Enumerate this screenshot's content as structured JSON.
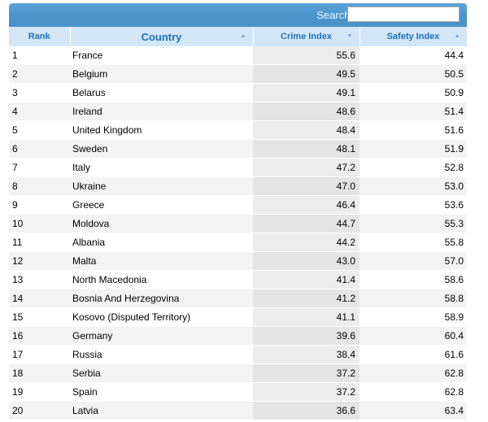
{
  "search": {
    "label": "Search:",
    "value": ""
  },
  "columns": {
    "rank": "Rank",
    "country": "Country",
    "crime": "Crime Index",
    "safety": "Safety Index"
  },
  "rows": [
    {
      "rank": "1",
      "country": "France",
      "crime": "55.6",
      "safety": "44.4"
    },
    {
      "rank": "2",
      "country": "Belgium",
      "crime": "49.5",
      "safety": "50.5"
    },
    {
      "rank": "3",
      "country": "Belarus",
      "crime": "49.1",
      "safety": "50.9"
    },
    {
      "rank": "4",
      "country": "Ireland",
      "crime": "48.6",
      "safety": "51.4"
    },
    {
      "rank": "5",
      "country": "United Kingdom",
      "crime": "48.4",
      "safety": "51.6"
    },
    {
      "rank": "6",
      "country": "Sweden",
      "crime": "48.1",
      "safety": "51.9"
    },
    {
      "rank": "7",
      "country": "Italy",
      "crime": "47.2",
      "safety": "52.8"
    },
    {
      "rank": "8",
      "country": "Ukraine",
      "crime": "47.0",
      "safety": "53.0"
    },
    {
      "rank": "9",
      "country": "Greece",
      "crime": "46.4",
      "safety": "53.6"
    },
    {
      "rank": "10",
      "country": "Moldova",
      "crime": "44.7",
      "safety": "55.3"
    },
    {
      "rank": "11",
      "country": "Albania",
      "crime": "44.2",
      "safety": "55.8"
    },
    {
      "rank": "12",
      "country": "Malta",
      "crime": "43.0",
      "safety": "57.0"
    },
    {
      "rank": "13",
      "country": "North Macedonia",
      "crime": "41.4",
      "safety": "58.6"
    },
    {
      "rank": "14",
      "country": "Bosnia And Herzegovina",
      "crime": "41.2",
      "safety": "58.8"
    },
    {
      "rank": "15",
      "country": "Kosovo (Disputed Territory)",
      "crime": "41.1",
      "safety": "58.9"
    },
    {
      "rank": "16",
      "country": "Germany",
      "crime": "39.6",
      "safety": "60.4"
    },
    {
      "rank": "17",
      "country": "Russia",
      "crime": "38.4",
      "safety": "61.6"
    },
    {
      "rank": "18",
      "country": "Serbia",
      "crime": "37.2",
      "safety": "62.8"
    },
    {
      "rank": "19",
      "country": "Spain",
      "crime": "37.2",
      "safety": "62.8"
    },
    {
      "rank": "20",
      "country": "Latvia",
      "crime": "36.6",
      "safety": "63.4"
    }
  ]
}
